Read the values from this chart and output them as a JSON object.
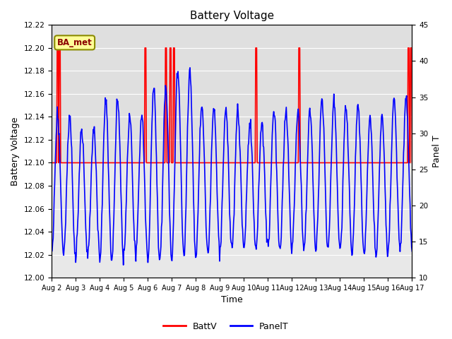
{
  "title": "Battery Voltage",
  "xlabel": "Time",
  "ylabel_left": "Battery Voltage",
  "ylabel_right": "Panel T",
  "xlim_days": [
    0,
    15
  ],
  "ylim_left": [
    12.0,
    12.22
  ],
  "ylim_right": [
    10,
    45
  ],
  "yticks_left": [
    12.0,
    12.02,
    12.04,
    12.06,
    12.08,
    12.1,
    12.12,
    12.14,
    12.16,
    12.18,
    12.2,
    12.22
  ],
  "yticks_right": [
    10,
    15,
    20,
    25,
    30,
    35,
    40,
    45
  ],
  "xtick_labels": [
    "Aug 2",
    "Aug 3",
    "Aug 4",
    "Aug 5",
    "Aug 6",
    "Aug 7",
    "Aug 8",
    "Aug 9",
    "Aug 10",
    "Aug 11",
    "Aug 12",
    "Aug 13",
    "Aug 14",
    "Aug 15",
    "Aug 16",
    "Aug 17"
  ],
  "plot_bg_color": "#e8e8e8",
  "grid_color": "#ffffff",
  "annotation_text": "BA_met",
  "annotation_bg": "#ffff99",
  "annotation_border": "#8B8B00",
  "batt_color": "#ff0000",
  "panel_color": "#0000ff",
  "batt_linewidth": 1.2,
  "panel_linewidth": 1.2,
  "batt_spike_days": [
    0.25,
    0.35,
    3.9,
    4.75,
    4.95,
    5.1,
    8.5,
    10.3,
    14.85,
    14.95
  ],
  "batt_base": 12.1,
  "batt_peak": 12.2
}
